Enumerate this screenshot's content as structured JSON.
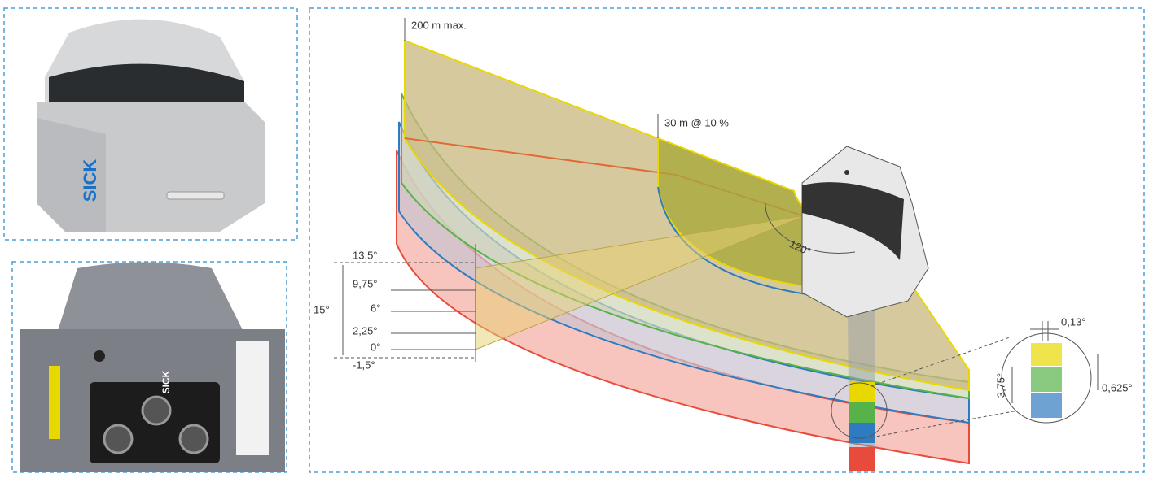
{
  "product": {
    "brand_top": "SICK",
    "brand_bottom": "SICK"
  },
  "diagram": {
    "range_max": "200 m max.",
    "range_10": "30 m @ 10 %",
    "aperture": "120°",
    "layer_angles": [
      "13,5°",
      "9,75°",
      "6°",
      "2,25°",
      "0°",
      "-1,5°"
    ],
    "total_angle": "15°",
    "zoom": {
      "horizontal_resolution": "0,13°",
      "layer_spacing": "3,75°",
      "vertical_resolution": "0,625°"
    }
  }
}
